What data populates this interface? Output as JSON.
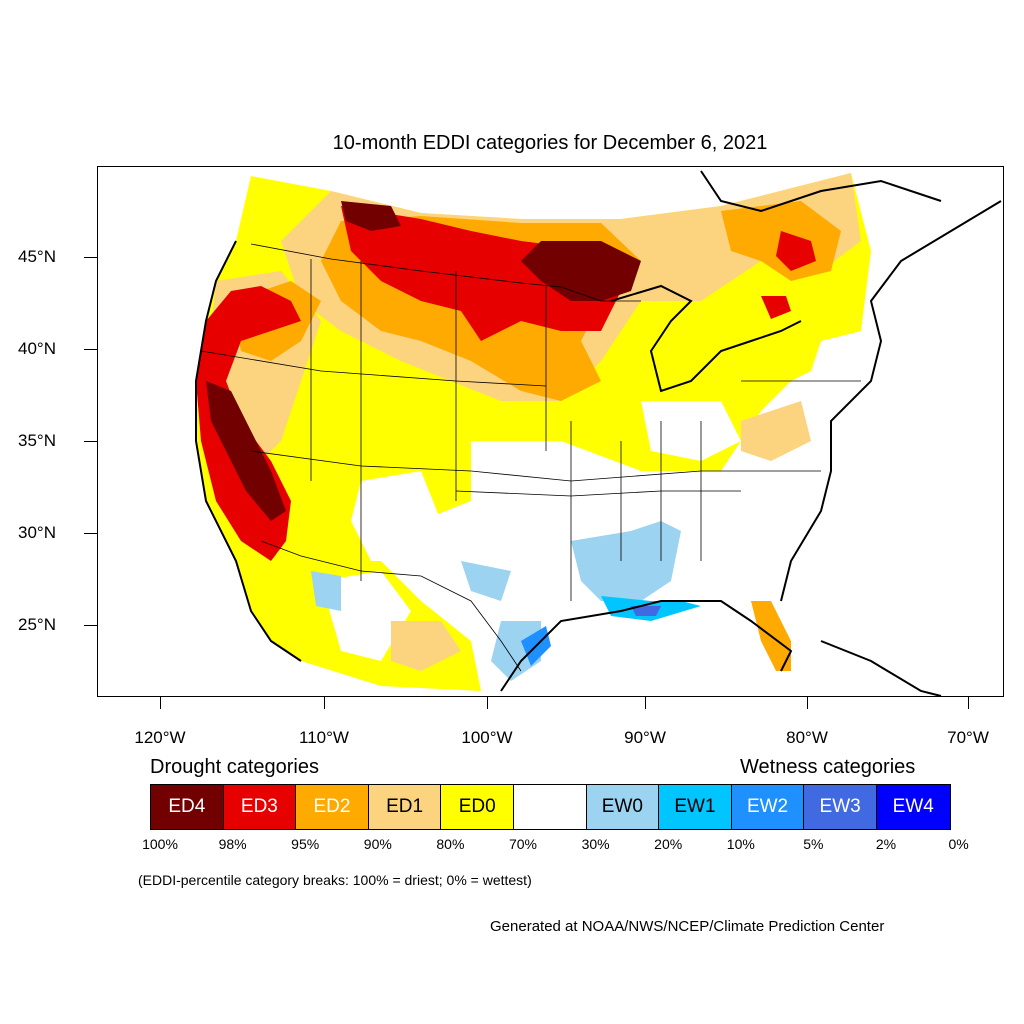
{
  "title": "10-month EDDI categories for December 6, 2021",
  "lat_labels": [
    "45°N",
    "40°N",
    "35°N",
    "30°N",
    "25°N"
  ],
  "lon_labels": [
    "120°W",
    "110°W",
    "100°W",
    "90°W",
    "80°W",
    "70°W"
  ],
  "legend": {
    "drought_heading": "Drought categories",
    "wetness_heading": "Wetness categories",
    "categories": [
      {
        "label": "ED4",
        "color": "#730000",
        "text_color": "#ffffff"
      },
      {
        "label": "ED3",
        "color": "#e60000",
        "text_color": "#ffffff"
      },
      {
        "label": "ED2",
        "color": "#ffaa00",
        "text_color": "#ffffff"
      },
      {
        "label": "ED1",
        "color": "#fcd37f",
        "text_color": "#000000"
      },
      {
        "label": "ED0",
        "color": "#ffff00",
        "text_color": "#000000"
      },
      {
        "label": "",
        "color": "#ffffff",
        "text_color": "#000000"
      },
      {
        "label": "EW0",
        "color": "#9bd3f0",
        "text_color": "#000000"
      },
      {
        "label": "EW1",
        "color": "#00c5ff",
        "text_color": "#000000"
      },
      {
        "label": "EW2",
        "color": "#1e90ff",
        "text_color": "#ffffff"
      },
      {
        "label": "EW3",
        "color": "#4169e1",
        "text_color": "#ffffff"
      },
      {
        "label": "EW4",
        "color": "#0000ff",
        "text_color": "#ffffff"
      }
    ],
    "breaks": [
      "100%",
      "98%",
      "95%",
      "90%",
      "80%",
      "70%",
      "30%",
      "20%",
      "10%",
      "5%",
      "2%",
      "0%"
    ]
  },
  "note": "(EDDI-percentile category breaks: 100% = driest; 0% = wettest)",
  "credit": "Generated at NOAA/NWS/NCEP/Climate Prediction Center"
}
